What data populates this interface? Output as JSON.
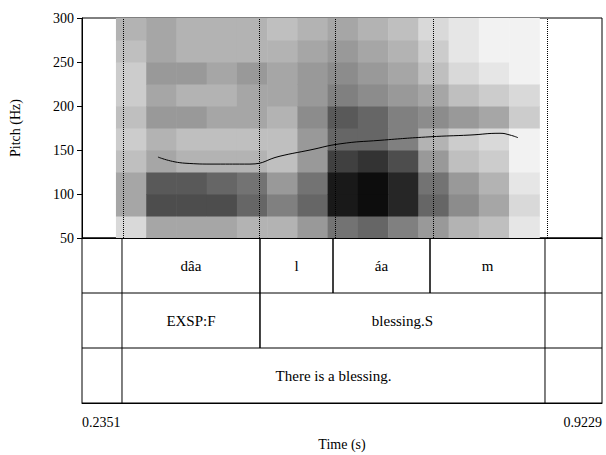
{
  "chart_data": {
    "type": "line",
    "x_label": "Time (s)",
    "y_label": "Pitch (Hz)",
    "xlim": [
      0.2351,
      0.9229
    ],
    "xticks": [
      0.2351,
      0.9229
    ],
    "ylim": [
      50,
      300
    ],
    "yticks": [
      50,
      100,
      150,
      200,
      250,
      300
    ],
    "grid": false,
    "color": "#000000",
    "x": [
      0.3356,
      0.3713,
      0.411,
      0.4573,
      0.497,
      0.5367,
      0.5764,
      0.6293,
      0.6954,
      0.7483,
      0.788,
      0.8012,
      0.8118
    ],
    "values": [
      142,
      135,
      134,
      134,
      143,
      150,
      157,
      161,
      165,
      167,
      169,
      167,
      164
    ],
    "spectrogram": {
      "time_edges": [
        0.28,
        0.32,
        0.36,
        0.4,
        0.44,
        0.48,
        0.52,
        0.56,
        0.6,
        0.64,
        0.68,
        0.72,
        0.76,
        0.8,
        0.84
      ],
      "frequency_edges": [
        50,
        75,
        100,
        125,
        150,
        175,
        200,
        225,
        250,
        275,
        300
      ],
      "levels": [
        [
          0.15,
          0.35,
          0.35,
          0.25,
          0.2,
          0.25,
          0.2,
          0.2,
          0.25,
          0.3
        ],
        [
          0.35,
          0.7,
          0.65,
          0.35,
          0.3,
          0.4,
          0.35,
          0.4,
          0.35,
          0.35
        ],
        [
          0.35,
          0.7,
          0.65,
          0.3,
          0.25,
          0.4,
          0.3,
          0.4,
          0.3,
          0.3
        ],
        [
          0.35,
          0.7,
          0.6,
          0.3,
          0.25,
          0.35,
          0.3,
          0.35,
          0.3,
          0.3
        ],
        [
          0.3,
          0.6,
          0.55,
          0.3,
          0.25,
          0.35,
          0.35,
          0.4,
          0.3,
          0.3
        ],
        [
          0.3,
          0.5,
          0.4,
          0.25,
          0.25,
          0.3,
          0.35,
          0.35,
          0.3,
          0.25
        ],
        [
          0.4,
          0.6,
          0.55,
          0.4,
          0.4,
          0.45,
          0.4,
          0.4,
          0.35,
          0.3
        ],
        [
          0.55,
          0.9,
          0.9,
          0.75,
          0.6,
          0.65,
          0.5,
          0.45,
          0.4,
          0.35
        ],
        [
          0.6,
          0.95,
          0.95,
          0.8,
          0.6,
          0.6,
          0.45,
          0.4,
          0.35,
          0.3
        ],
        [
          0.5,
          0.85,
          0.85,
          0.7,
          0.5,
          0.5,
          0.4,
          0.35,
          0.3,
          0.25
        ],
        [
          0.4,
          0.6,
          0.55,
          0.4,
          0.3,
          0.45,
          0.35,
          0.25,
          0.2,
          0.15
        ],
        [
          0.3,
          0.45,
          0.4,
          0.25,
          0.2,
          0.4,
          0.25,
          0.15,
          0.1,
          0.1
        ],
        [
          0.25,
          0.35,
          0.3,
          0.2,
          0.15,
          0.35,
          0.2,
          0.1,
          0.05,
          0.05
        ],
        [
          0.1,
          0.15,
          0.1,
          0.05,
          0.05,
          0.2,
          0.15,
          0.05,
          0.05,
          0.05
        ]
      ]
    },
    "annotation_tiers": [
      [
        {
          "start": 0.288,
          "end": 0.4705,
          "text": "dâa"
        },
        {
          "start": 0.4705,
          "end": 0.5671,
          "text": "l"
        },
        {
          "start": 0.5671,
          "end": 0.6954,
          "text": "áa"
        },
        {
          "start": 0.6954,
          "end": 0.8475,
          "text": "m"
        }
      ],
      [
        {
          "start": 0.288,
          "end": 0.4705,
          "text": "EXSP:F"
        },
        {
          "start": 0.4705,
          "end": 0.8475,
          "text": "blessing.S"
        }
      ],
      [
        {
          "start": 0.288,
          "end": 0.8475,
          "text": "There is a blessing."
        }
      ]
    ]
  }
}
